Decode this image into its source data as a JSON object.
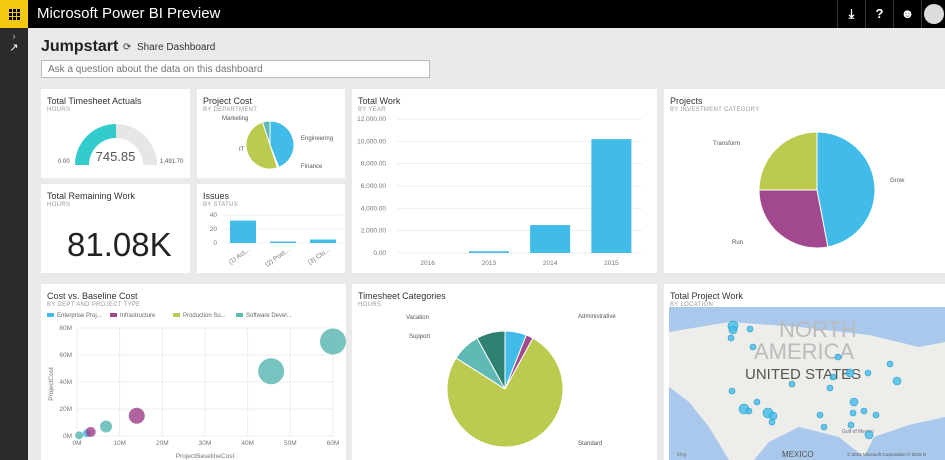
{
  "app": {
    "title": "Microsoft Power BI Preview",
    "icons": [
      "download-icon",
      "help-icon",
      "smiley-icon",
      "avatar"
    ]
  },
  "header": {
    "title": "Jumpstart",
    "share": "Share Dashboard",
    "qa_placeholder": "Ask a question about the data on this dashboard"
  },
  "tiles": {
    "timesheet": {
      "title": "Total Timesheet Actuals",
      "subtitle": "HOURS",
      "value": "745.85",
      "min": "0.00",
      "max": "1,491.70",
      "fill": 0.5
    },
    "projectcost": {
      "title": "Project Cost",
      "subtitle": "BY DEPARTMENT"
    },
    "remaining": {
      "title": "Total Remaining Work",
      "subtitle": "HOURS",
      "value": "81.08K"
    },
    "issues": {
      "title": "Issues",
      "subtitle": "BY STATUS"
    },
    "totalwork": {
      "title": "Total Work",
      "subtitle": "BY YEAR"
    },
    "projects": {
      "title": "Projects",
      "subtitle": "BY INVESTMENT CATEGORY"
    },
    "costbaseline": {
      "title": "Cost vs. Baseline Cost",
      "subtitle": "BY DEPT AND PROJECT TYPE"
    },
    "tscat": {
      "title": "Timesheet Categories",
      "subtitle": "HOURS"
    },
    "map": {
      "title": "Total Project Work",
      "subtitle": "BY LOCATION",
      "labels": [
        "NORTH",
        "AMERICA",
        "UNITED STATES",
        "MEXICO",
        "Gulf of Mexico"
      ],
      "bing": "bing",
      "copyright": "© 2015 Microsoft Corporation   © 2015 N"
    }
  },
  "chart_data": [
    {
      "type": "pie",
      "title": "Project Cost",
      "categories": [
        "Engineering",
        "Finance",
        "IT",
        "Marketing"
      ],
      "values": [
        44,
        1,
        50,
        5
      ],
      "colors": [
        "#41bce9",
        "#ffffff",
        "#bccb4f",
        "#5fb9b5"
      ]
    },
    {
      "type": "bar",
      "title": "Issues",
      "categories": [
        "(1) Act...",
        "(2) Post...",
        "(3) Clo..."
      ],
      "values": [
        32,
        2,
        5
      ],
      "yticks": [
        "40",
        "20",
        "0"
      ],
      "ylim": [
        0,
        40
      ]
    },
    {
      "type": "bar",
      "title": "Total Work",
      "categories": [
        "2016",
        "2013",
        "2014",
        "2015"
      ],
      "values": [
        0,
        150,
        2500,
        10200
      ],
      "yticks": [
        "12,000.00",
        "10,000.00",
        "8,000.00",
        "6,000.00",
        "4,000.00",
        "2,000.00",
        "0.00"
      ],
      "ylim": [
        0,
        12000
      ]
    },
    {
      "type": "pie",
      "title": "Projects",
      "categories": [
        "Grow",
        "Run",
        "Transform"
      ],
      "values": [
        47,
        28,
        25
      ],
      "colors": [
        "#41bce9",
        "#a2488e",
        "#bccb4f"
      ]
    },
    {
      "type": "scatter",
      "title": "Cost vs. Baseline Cost",
      "xlabel": "ProjectBaselineCost",
      "ylabel": "ProjectCost",
      "xticks": [
        "0M",
        "10M",
        "20M",
        "30M",
        "40M",
        "50M",
        "60M"
      ],
      "yticks": [
        "80M",
        "60M",
        "40M",
        "20M",
        "0M"
      ],
      "xlim": [
        0,
        60
      ],
      "ylim": [
        0,
        80
      ],
      "legend": [
        "Enterprise Proj...",
        "Infrastructure",
        "Production Su...",
        "Software Devel..."
      ],
      "colors": [
        "#41bce9",
        "#a2488e",
        "#bccb4f",
        "#5fb9b5"
      ],
      "points": [
        {
          "s": 3,
          "x": 0.5,
          "y": 0.5,
          "r": 4
        },
        {
          "s": 0,
          "x": 2.3,
          "y": 2,
          "r": 4
        },
        {
          "s": 1,
          "x": 3.2,
          "y": 3,
          "r": 5
        },
        {
          "s": 3,
          "x": 6.8,
          "y": 7,
          "r": 6
        },
        {
          "s": 1,
          "x": 14,
          "y": 15,
          "r": 8
        },
        {
          "s": 3,
          "x": 45.5,
          "y": 48,
          "r": 13
        },
        {
          "s": 3,
          "x": 60,
          "y": 70,
          "r": 13
        }
      ]
    },
    {
      "type": "pie",
      "title": "Timesheet Categories",
      "categories": [
        "Administrative",
        "",
        "Standard",
        "Support",
        "Vacation"
      ],
      "values": [
        6,
        2,
        76,
        8,
        8
      ],
      "colors": [
        "#41bce9",
        "#a2488e",
        "#bccb4f",
        "#5fb9b5",
        "#2f8172"
      ]
    }
  ]
}
